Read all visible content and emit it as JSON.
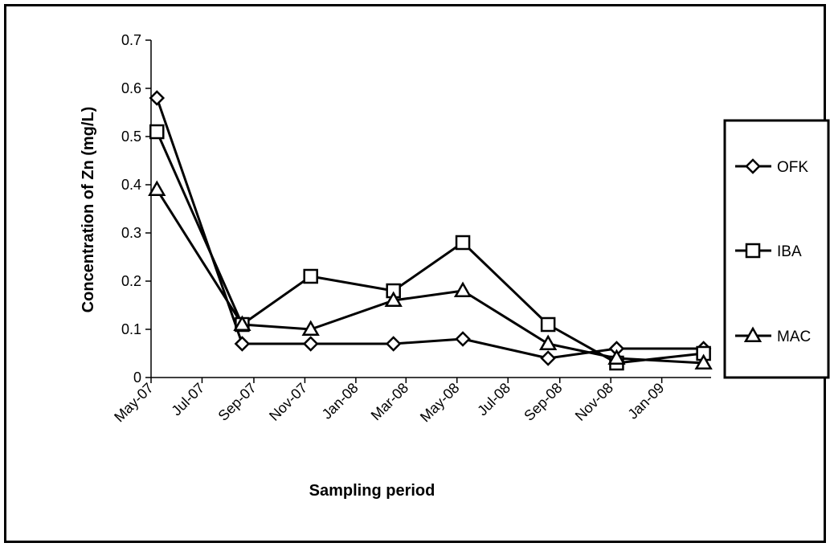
{
  "chart_data": {
    "type": "line",
    "title": "",
    "xlabel": "Sampling period",
    "ylabel": "Concentration of Zn (mg/L)",
    "ylim": [
      0,
      0.7
    ],
    "yticks": [
      "0",
      "0.1",
      "0.2",
      "0.3",
      "0.4",
      "0.5",
      "0.6",
      "0.7"
    ],
    "xlim": [
      "2007-05-01",
      "2009-03-01"
    ],
    "xticks": [
      "May-07",
      "Jul-07",
      "Sep-07",
      "Nov-07",
      "Jan-08",
      "Mar-08",
      "May-08",
      "Jul-08",
      "Sep-08",
      "Nov-08",
      "Jan-09"
    ],
    "xtick_dates": [
      "2007-05-01",
      "2007-07-01",
      "2007-09-01",
      "2007-11-01",
      "2008-01-01",
      "2008-03-01",
      "2008-05-01",
      "2008-07-01",
      "2008-09-01",
      "2008-11-01",
      "2009-01-01"
    ],
    "x": [
      "2007-05-08",
      "2007-08-18",
      "2007-11-08",
      "2008-02-15",
      "2008-05-08",
      "2008-08-18",
      "2008-11-08",
      "2009-02-20"
    ],
    "series": [
      {
        "name": "OFK",
        "marker": "diamond",
        "values": [
          0.58,
          0.07,
          0.07,
          0.07,
          0.08,
          0.04,
          0.06,
          0.06
        ]
      },
      {
        "name": "IBA",
        "marker": "square",
        "values": [
          0.51,
          0.11,
          0.21,
          0.18,
          0.28,
          0.11,
          0.03,
          0.05
        ]
      },
      {
        "name": "MAC",
        "marker": "triangle",
        "values": [
          0.39,
          0.11,
          0.1,
          0.16,
          0.18,
          0.07,
          0.04,
          0.03
        ]
      }
    ],
    "grid": false,
    "legend_position": "right",
    "line_color": "#000000"
  }
}
